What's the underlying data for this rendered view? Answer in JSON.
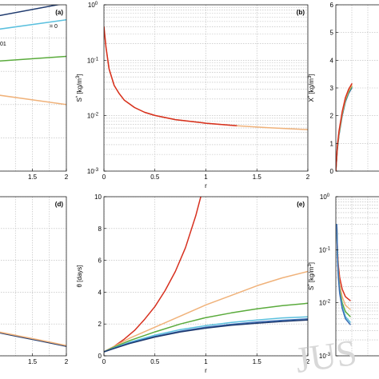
{
  "figure": {
    "watermark": "JUS",
    "annotations": [
      "= 0",
      "01"
    ]
  },
  "colors": {
    "red": "#d7301f",
    "orange": "#f0b27a",
    "green": "#5aab3c",
    "cyan": "#5bc0de",
    "blue": "#3b6db5",
    "darkblue": "#1f3a6e"
  },
  "chart_data": [
    {
      "panel_label": "(a)",
      "type": "line",
      "xlim": [
        1.0,
        2.0
      ],
      "ylim": [
        0,
        10
      ],
      "xticks": [
        "1.5",
        "2"
      ],
      "yticks": [],
      "xlabel": "",
      "ylabel": "",
      "grid": true,
      "series": [
        {
          "color": "darkblue",
          "x": [
            0.95,
            2.0
          ],
          "y": [
            9.3,
            10.1
          ]
        },
        {
          "color": "cyan",
          "x": [
            0.95,
            2.0
          ],
          "y": [
            8.5,
            9.1
          ]
        },
        {
          "color": "green",
          "x": [
            0.95,
            2.0
          ],
          "y": [
            6.6,
            6.9
          ]
        },
        {
          "color": "orange",
          "x": [
            0.95,
            2.0
          ],
          "y": [
            4.6,
            4.0
          ]
        }
      ]
    },
    {
      "panel_label": "(b)",
      "type": "line",
      "xlim": [
        0,
        2
      ],
      "ylim": [
        -3,
        0
      ],
      "log_y": true,
      "xticks": [
        "0",
        "0.5",
        "1",
        "1.5",
        "2"
      ],
      "yticks": [
        "10",
        "10",
        "10",
        "10"
      ],
      "ytick_exps": [
        "-3",
        "-2",
        "-1",
        "0"
      ],
      "xlabel": "r",
      "ylabel": "S [kg/m ]",
      "ylabel_sup": [
        "*",
        "3"
      ],
      "grid": true,
      "series": [
        {
          "color": "orange",
          "x": [
            0.0,
            0.02,
            0.05,
            0.1,
            0.15,
            0.2,
            0.3,
            0.4,
            0.5,
            0.7,
            1.0,
            1.3,
            1.6,
            2.0
          ],
          "y": [
            0.4,
            0.17,
            0.07,
            0.035,
            0.025,
            0.019,
            0.014,
            0.0115,
            0.0101,
            0.0085,
            0.0073,
            0.0066,
            0.0061,
            0.0056
          ]
        },
        {
          "color": "red",
          "x": [
            0.0,
            0.02,
            0.05,
            0.1,
            0.15,
            0.2,
            0.3,
            0.4,
            0.5,
            0.7,
            1.0,
            1.3
          ],
          "y": [
            0.4,
            0.17,
            0.07,
            0.035,
            0.025,
            0.019,
            0.014,
            0.0115,
            0.0101,
            0.0085,
            0.0073,
            0.0066
          ]
        }
      ]
    },
    {
      "panel_label": "",
      "type": "line",
      "xlim": [
        0,
        2
      ],
      "ylim": [
        0,
        6
      ],
      "xticks": [],
      "yticks": [
        "0",
        "1",
        "2",
        "3",
        "4",
        "5",
        "6"
      ],
      "xlabel": "",
      "ylabel": "X [kg/m ]",
      "ylabel_sup": [
        "*",
        "3"
      ],
      "grid": true,
      "series": [
        {
          "color": "blue",
          "x": [
            0.0,
            0.05,
            0.1,
            0.2,
            0.3,
            0.4,
            0.5
          ],
          "y": [
            0.0,
            0.8,
            1.3,
            2.0,
            2.5,
            2.8,
            3.0
          ]
        },
        {
          "color": "green",
          "x": [
            0.0,
            0.05,
            0.1,
            0.2,
            0.3,
            0.4,
            0.5
          ],
          "y": [
            0.0,
            0.85,
            1.35,
            2.05,
            2.55,
            2.85,
            3.05
          ]
        },
        {
          "color": "orange",
          "x": [
            0.0,
            0.05,
            0.1,
            0.2,
            0.3,
            0.4,
            0.5
          ],
          "y": [
            0.0,
            0.9,
            1.4,
            2.1,
            2.6,
            2.9,
            3.1
          ]
        },
        {
          "color": "red",
          "x": [
            0.0,
            0.05,
            0.1,
            0.2,
            0.3,
            0.4,
            0.5
          ],
          "y": [
            0.0,
            0.95,
            1.45,
            2.15,
            2.65,
            2.95,
            3.15
          ]
        }
      ]
    },
    {
      "panel_label": "(d)",
      "type": "line",
      "xlim": [
        1.0,
        2.0
      ],
      "ylim": [
        0,
        10
      ],
      "xticks": [
        "1.5",
        "2"
      ],
      "yticks": [],
      "xlabel": "",
      "ylabel": "",
      "grid": true,
      "series": [
        {
          "color": "darkblue",
          "x": [
            0.95,
            1.3,
            1.6,
            2.0
          ],
          "y": [
            1.5,
            1.2,
            0.95,
            0.6
          ]
        },
        {
          "color": "orange",
          "x": [
            0.95,
            1.3,
            1.6,
            2.0
          ],
          "y": [
            1.55,
            1.25,
            1.0,
            0.65
          ]
        }
      ]
    },
    {
      "panel_label": "(e)",
      "type": "line",
      "xlim": [
        0,
        2
      ],
      "ylim": [
        0,
        10
      ],
      "xticks": [
        "0",
        "0.5",
        "1",
        "1.5",
        "2"
      ],
      "yticks": [
        "0",
        "2",
        "4",
        "6",
        "8",
        "10"
      ],
      "xlabel": "r",
      "ylabel": "θ [days]",
      "grid": true,
      "series": [
        {
          "color": "red",
          "x": [
            0.0,
            0.1,
            0.2,
            0.3,
            0.4,
            0.5,
            0.6,
            0.7,
            0.8,
            0.9,
            0.95
          ],
          "y": [
            0.25,
            0.6,
            1.05,
            1.6,
            2.3,
            3.1,
            4.1,
            5.3,
            6.8,
            8.8,
            10.0
          ]
        },
        {
          "color": "orange",
          "x": [
            0.0,
            0.1,
            0.25,
            0.5,
            0.75,
            1.0,
            1.25,
            1.5,
            1.75,
            2.0
          ],
          "y": [
            0.25,
            0.6,
            1.1,
            1.8,
            2.5,
            3.2,
            3.8,
            4.4,
            4.9,
            5.3
          ]
        },
        {
          "color": "green",
          "x": [
            0.0,
            0.1,
            0.25,
            0.5,
            0.75,
            1.0,
            1.25,
            1.5,
            1.75,
            2.0
          ],
          "y": [
            0.25,
            0.55,
            0.95,
            1.5,
            2.0,
            2.4,
            2.7,
            2.95,
            3.15,
            3.3
          ]
        },
        {
          "color": "cyan",
          "x": [
            0.0,
            0.1,
            0.25,
            0.5,
            0.75,
            1.0,
            1.25,
            1.5,
            1.75,
            2.0
          ],
          "y": [
            0.25,
            0.5,
            0.85,
            1.3,
            1.65,
            1.9,
            2.1,
            2.25,
            2.38,
            2.45
          ]
        },
        {
          "color": "blue",
          "x": [
            0.0,
            0.1,
            0.25,
            0.5,
            0.75,
            1.0,
            1.25,
            1.5,
            1.75,
            2.0
          ],
          "y": [
            0.25,
            0.48,
            0.8,
            1.22,
            1.55,
            1.8,
            1.98,
            2.12,
            2.23,
            2.32
          ]
        },
        {
          "color": "darkblue",
          "x": [
            0.0,
            0.1,
            0.25,
            0.5,
            0.75,
            1.0,
            1.25,
            1.5,
            1.75,
            2.0
          ],
          "y": [
            0.25,
            0.46,
            0.77,
            1.18,
            1.5,
            1.74,
            1.92,
            2.05,
            2.16,
            2.25
          ]
        }
      ]
    },
    {
      "panel_label": "",
      "type": "line",
      "xlim": [
        0,
        2
      ],
      "ylim": [
        -3,
        0
      ],
      "log_y": true,
      "xticks": [],
      "yticks": [
        "10",
        "10",
        "10",
        "10"
      ],
      "ytick_exps": [
        "-3",
        "-2",
        "-1",
        "0"
      ],
      "xlabel": "",
      "ylabel": "S [kg/m ]",
      "ylabel_sup": [
        "*",
        "3"
      ],
      "grid": true,
      "series": [
        {
          "color": "red",
          "x": [
            0.03,
            0.05,
            0.08,
            0.12,
            0.2,
            0.3,
            0.45
          ],
          "y": [
            0.3,
            0.1,
            0.05,
            0.03,
            0.018,
            0.013,
            0.011
          ]
        },
        {
          "color": "orange",
          "x": [
            0.03,
            0.05,
            0.08,
            0.12,
            0.2,
            0.3,
            0.45
          ],
          "y": [
            0.3,
            0.09,
            0.04,
            0.022,
            0.013,
            0.009,
            0.0075
          ]
        },
        {
          "color": "green",
          "x": [
            0.03,
            0.05,
            0.08,
            0.12,
            0.2,
            0.3,
            0.45
          ],
          "y": [
            0.3,
            0.085,
            0.035,
            0.018,
            0.01,
            0.0068,
            0.0055
          ]
        },
        {
          "color": "cyan",
          "x": [
            0.03,
            0.05,
            0.08,
            0.12,
            0.2,
            0.3,
            0.45
          ],
          "y": [
            0.3,
            0.08,
            0.032,
            0.016,
            0.0085,
            0.0055,
            0.0043
          ]
        },
        {
          "color": "blue",
          "x": [
            0.03,
            0.05,
            0.08,
            0.12,
            0.2,
            0.3,
            0.45
          ],
          "y": [
            0.3,
            0.078,
            0.03,
            0.015,
            0.0078,
            0.005,
            0.0039
          ]
        }
      ]
    }
  ]
}
